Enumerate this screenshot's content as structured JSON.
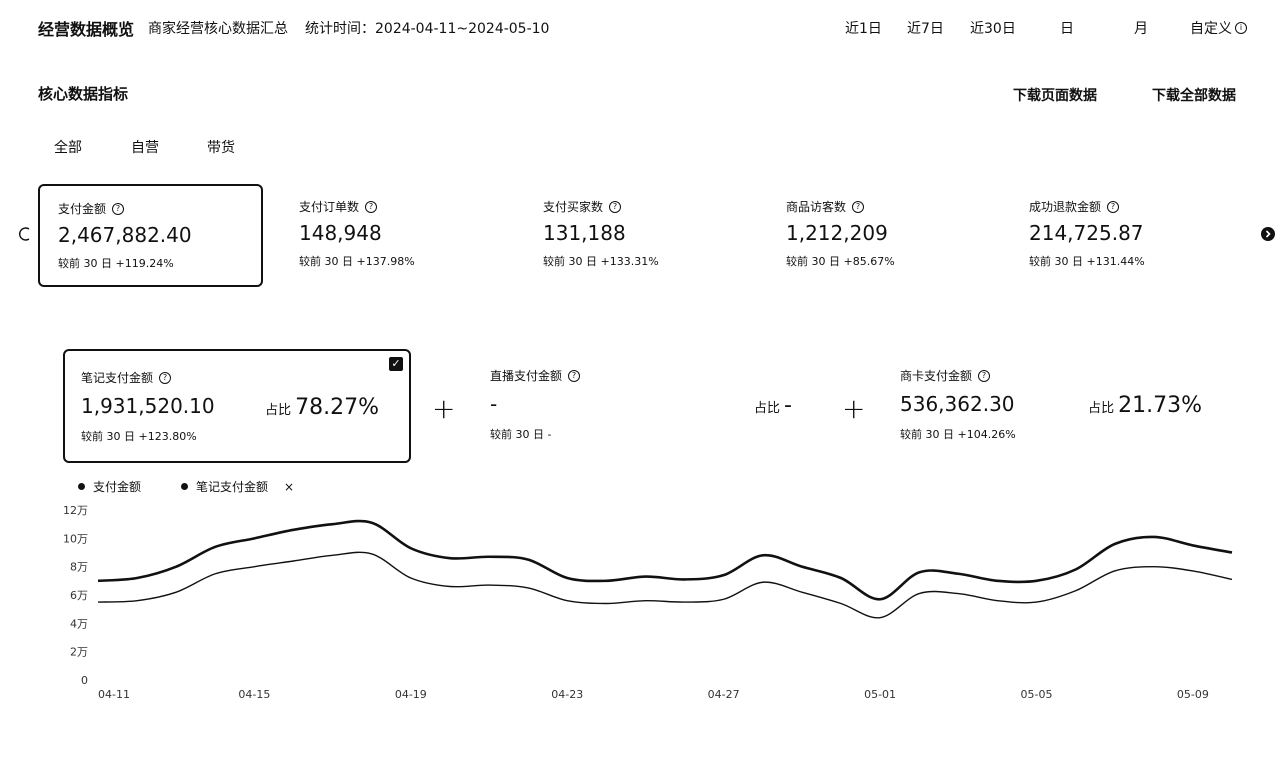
{
  "header": {
    "title": "经营数据概览",
    "subtitle": "商家经营核心数据汇总",
    "stat_time": "统计时间：2024-04-11~2024-05-10",
    "ranges": [
      "近1日",
      "近7日",
      "近30日",
      "日",
      "月"
    ],
    "custom": "自定义"
  },
  "section": {
    "title": "核心数据指标",
    "download_page": "下载页面数据",
    "download_all": "下载全部数据",
    "tabs": [
      "全部",
      "自营",
      "带货"
    ]
  },
  "metrics": [
    {
      "label": "支付金额",
      "value": "2,467,882.40",
      "cmp": "较前 30 日  +119.24%"
    },
    {
      "label": "支付订单数",
      "value": "148,948",
      "cmp": "较前 30 日  +137.98%"
    },
    {
      "label": "支付买家数",
      "value": "131,188",
      "cmp": "较前 30 日  +133.31%"
    },
    {
      "label": "商品访客数",
      "value": "1,212,209",
      "cmp": "较前 30 日  +85.67%"
    },
    {
      "label": "成功退款金额",
      "value": "214,725.87",
      "cmp": "较前 30 日  +131.44%"
    }
  ],
  "sources": [
    {
      "label": "笔记支付金额",
      "value": "1,931,520.10",
      "share_label": "占比",
      "share": "78.27%",
      "cmp": "较前 30 日  +123.80%"
    },
    {
      "label": "直播支付金额",
      "value": "-",
      "share_label": "占比",
      "share": "-",
      "cmp": "较前 30 日  -"
    },
    {
      "label": "商卡支付金额",
      "value": "536,362.30",
      "share_label": "占比",
      "share": "21.73%",
      "cmp": "较前 30 日  +104.26%"
    }
  ],
  "legend": {
    "series1": "支付金额",
    "series2": "笔记支付金额",
    "close": "×"
  },
  "chart_data": {
    "type": "line",
    "y_ticks": [
      "0",
      "2万",
      "4万",
      "6万",
      "8万",
      "10万",
      "12万"
    ],
    "ylim": [
      0,
      120000
    ],
    "x_ticks": [
      "04-11",
      "04-15",
      "04-19",
      "04-23",
      "04-27",
      "05-01",
      "05-05",
      "05-09"
    ],
    "x": [
      "04-11",
      "04-12",
      "04-13",
      "04-14",
      "04-15",
      "04-16",
      "04-17",
      "04-18",
      "04-19",
      "04-20",
      "04-21",
      "04-22",
      "04-23",
      "04-24",
      "04-25",
      "04-26",
      "04-27",
      "04-28",
      "04-29",
      "04-30",
      "05-01",
      "05-02",
      "05-03",
      "05-04",
      "05-05",
      "05-06",
      "05-07",
      "05-08",
      "05-09",
      "05-10"
    ],
    "series": [
      {
        "name": "支付金额",
        "values": [
          70000,
          72000,
          80000,
          94000,
          100000,
          106000,
          110000,
          111000,
          93000,
          86000,
          87000,
          85000,
          72000,
          70000,
          73000,
          71000,
          74000,
          88000,
          80000,
          72000,
          57000,
          76000,
          75000,
          70000,
          70000,
          78000,
          96000,
          101000,
          95000,
          90000
        ]
      },
      {
        "name": "笔记支付金额",
        "values": [
          55000,
          56000,
          62000,
          75000,
          80000,
          84000,
          88000,
          89000,
          72000,
          66000,
          67000,
          65000,
          56000,
          54000,
          56000,
          55000,
          57000,
          69000,
          62000,
          54000,
          44000,
          61000,
          61000,
          56000,
          55000,
          63000,
          77000,
          80000,
          77000,
          71000
        ]
      }
    ]
  }
}
